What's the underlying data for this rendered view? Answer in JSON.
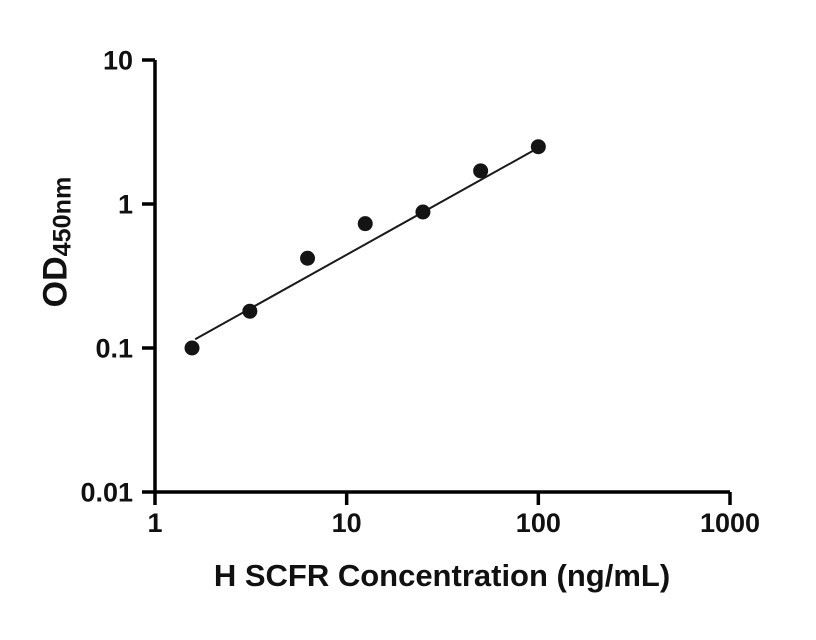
{
  "figure": {
    "background": "#ffffff",
    "axis_color": "#000000",
    "text_color": "#111111",
    "point_color": "#141414",
    "line_color": "#1a1a1a"
  },
  "chart_data": {
    "type": "scatter",
    "title": "",
    "xlabel": "H SCFR Concentration (ng/mL)",
    "ylabel_main": "OD",
    "ylabel_sub": "450nm",
    "x_scale": "log10",
    "y_scale": "log10",
    "xlim": [
      1,
      1000
    ],
    "ylim": [
      0.01,
      10
    ],
    "grid": false,
    "legend": false,
    "x_ticks": [
      {
        "value": 1,
        "label": "1"
      },
      {
        "value": 10,
        "label": "10"
      },
      {
        "value": 100,
        "label": "100"
      },
      {
        "value": 1000,
        "label": "1000"
      }
    ],
    "y_ticks": [
      {
        "value": 0.01,
        "label": "0.01"
      },
      {
        "value": 0.1,
        "label": "0.1"
      },
      {
        "value": 1,
        "label": "1"
      },
      {
        "value": 10,
        "label": "10"
      }
    ],
    "series": [
      {
        "name": "fit-line",
        "type": "line",
        "points": [
          {
            "x": 1.62,
            "y": 0.115
          },
          {
            "x": 98,
            "y": 2.42
          }
        ]
      },
      {
        "name": "standard-curve-points",
        "type": "scatter",
        "marker": "filled-circle",
        "points": [
          {
            "x": 1.56,
            "y": 0.1
          },
          {
            "x": 3.125,
            "y": 0.18
          },
          {
            "x": 6.25,
            "y": 0.42
          },
          {
            "x": 12.5,
            "y": 0.73
          },
          {
            "x": 25,
            "y": 0.88
          },
          {
            "x": 50,
            "y": 1.7
          },
          {
            "x": 100,
            "y": 2.5
          }
        ]
      }
    ]
  }
}
